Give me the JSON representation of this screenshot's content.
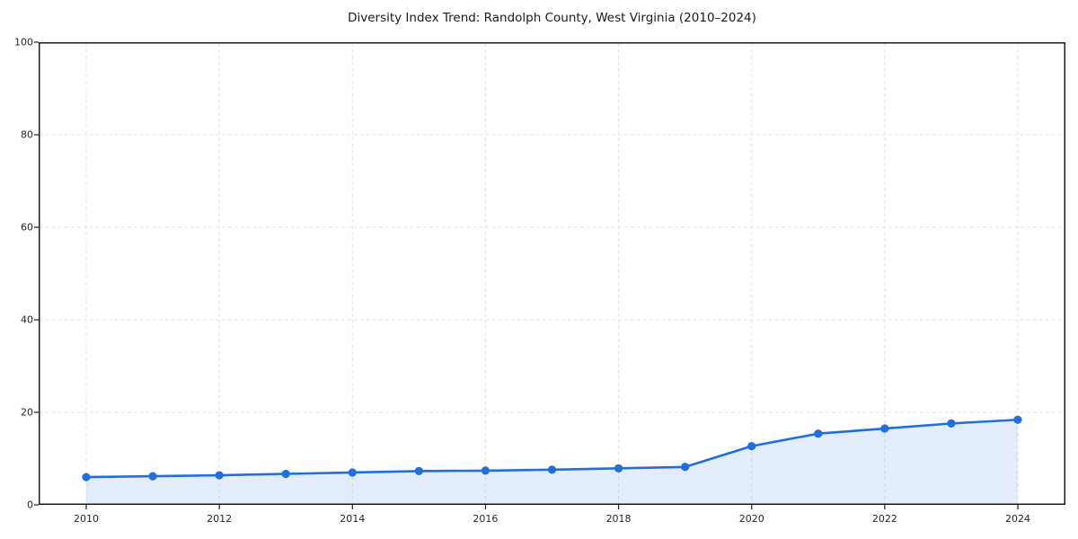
{
  "chart_data": {
    "type": "line",
    "title": "Diversity Index Trend: Randolph County, West Virginia (2010–2024)",
    "x": [
      2010,
      2011,
      2012,
      2013,
      2014,
      2015,
      2016,
      2017,
      2018,
      2019,
      2020,
      2021,
      2022,
      2023,
      2024
    ],
    "values": [
      6.0,
      6.2,
      6.4,
      6.7,
      7.0,
      7.3,
      7.4,
      7.6,
      7.9,
      8.2,
      12.7,
      15.4,
      16.5,
      17.6,
      18.4
    ],
    "xlabel": "",
    "ylabel": "",
    "ylim": [
      0,
      100
    ],
    "yticks": [
      0,
      20,
      40,
      60,
      80,
      100
    ],
    "xticks": [
      2010,
      2012,
      2014,
      2016,
      2018,
      2020,
      2022,
      2024
    ],
    "grid": "dashed",
    "legend": "none",
    "line_color": "#1f6fe0",
    "fill_color": "#1f6fe0",
    "fill_opacity": 0.13,
    "grid_color": "#e2e2e2",
    "spine_color": "#1c1c1c",
    "marker": "circle"
  }
}
